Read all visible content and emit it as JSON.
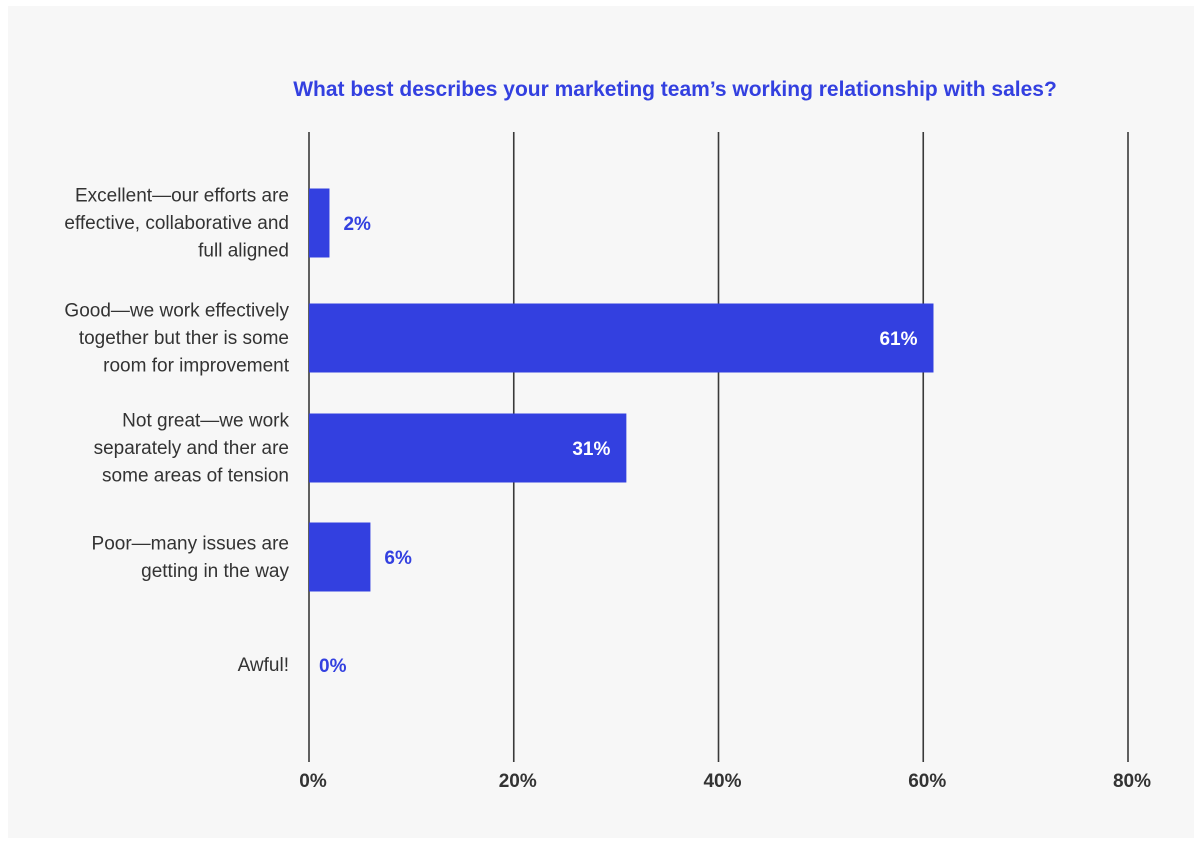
{
  "chart_data": {
    "type": "bar",
    "orientation": "horizontal",
    "title": "What best describes your marketing team’s working relationship with sales?",
    "categories": [
      [
        "Excellent—our efforts are",
        "effective, collaborative and",
        "full aligned"
      ],
      [
        "Good—we work effectively",
        "together but ther is some",
        "room for improvement"
      ],
      [
        "Not great—we work",
        "separately and ther are",
        "some areas of tension"
      ],
      [
        "Poor—many issues are",
        "getting in the way"
      ],
      [
        "Awful!"
      ]
    ],
    "values": [
      2,
      61,
      31,
      6,
      0
    ],
    "value_labels": [
      "2%",
      "61%",
      "31%",
      "6%",
      "0%"
    ],
    "xlim": [
      0,
      80
    ],
    "xticks": [
      0,
      20,
      40,
      60,
      80
    ],
    "xtick_labels": [
      "0%",
      "20%",
      "40%",
      "60%",
      "80%"
    ],
    "grid": "vertical",
    "legend": "none",
    "colors": {
      "bar": "#3340e0",
      "title": "#3340e0",
      "value_label_outside": "#3340e0",
      "value_label_inside": "#ffffff",
      "grid": "#3a3a3a",
      "category_text": "#333333",
      "tick_text": "#333333",
      "background": "#f7f7f7"
    }
  }
}
